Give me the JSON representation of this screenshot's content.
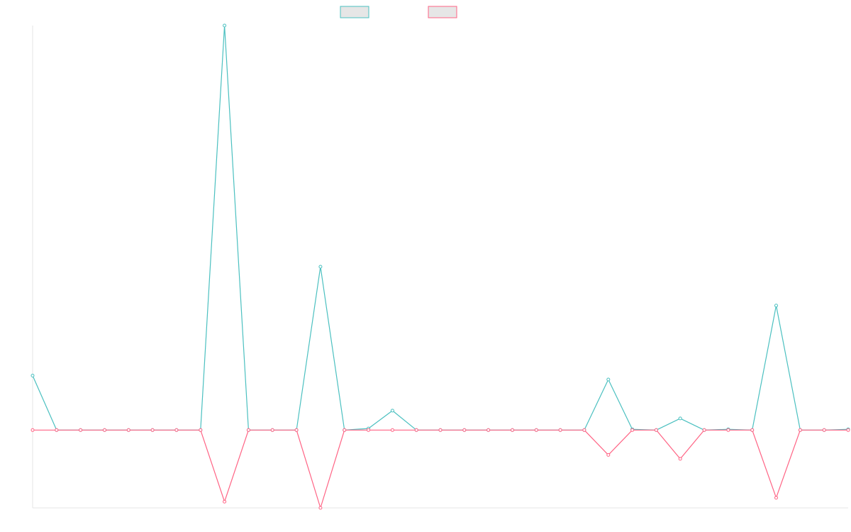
{
  "chart_data": {
    "type": "line",
    "title": "",
    "xlabel": "",
    "ylabel": "",
    "grid": false,
    "legend_placement": "top-center",
    "colors": {
      "series_1": "#4bc0c0",
      "series_2": "#ff6384",
      "legend_fill": "#e6e6e6",
      "axis": "#e6e6e6"
    },
    "x": [
      0,
      1,
      2,
      3,
      4,
      5,
      6,
      7,
      8,
      9,
      10,
      11,
      12,
      13,
      14,
      15,
      16,
      17,
      18,
      19,
      20,
      21,
      22,
      23,
      24,
      25,
      26,
      27,
      28,
      29,
      30,
      31,
      32,
      33,
      34
    ],
    "ylim": [
      -1.0,
      5.2
    ],
    "series": [
      {
        "values": [
          0.7,
          0,
          0,
          0,
          0,
          0,
          0,
          0,
          5.2,
          0,
          0,
          0,
          2.1,
          0,
          0.02,
          0.25,
          0,
          0,
          0,
          0,
          0,
          0,
          0,
          0,
          0.65,
          0.01,
          0,
          0.15,
          0,
          0.01,
          0,
          1.6,
          0,
          0,
          0.01
        ]
      },
      {
        "values": [
          0,
          0,
          0,
          0,
          0,
          0,
          0,
          0,
          -0.92,
          0,
          0,
          0,
          -1.0,
          0,
          0,
          0,
          0,
          0,
          0,
          0,
          0,
          0,
          0,
          0,
          -0.32,
          0,
          0,
          -0.37,
          0,
          0,
          0,
          -0.87,
          0,
          0,
          0
        ]
      }
    ]
  }
}
